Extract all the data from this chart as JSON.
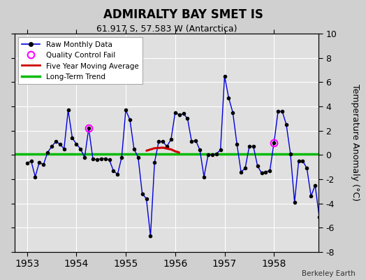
{
  "title": "ADMIRALTY BAY SMET IS",
  "subtitle": "61.917 S, 57.583 W (Antarctica)",
  "ylabel": "Temperature Anomaly (°C)",
  "credit": "Berkeley Earth",
  "ylim": [
    -8,
    10
  ],
  "yticks": [
    -8,
    -6,
    -4,
    -2,
    0,
    2,
    4,
    6,
    8,
    10
  ],
  "xlim_start": 1952.75,
  "xlim_end": 1958.9,
  "xticks": [
    1953,
    1954,
    1955,
    1956,
    1957,
    1958
  ],
  "line_color": "#0000dd",
  "marker_color": "#000000",
  "green_trend_color": "#00bb00",
  "red_moving_avg_color": "#cc0000",
  "qc_fail_color": "#ff00ff",
  "plot_bg_color": "#e0e0e0",
  "fig_bg_color": "#d0d0d0",
  "raw_data": [
    -0.7,
    -0.5,
    -1.8,
    -0.6,
    -0.8,
    0.2,
    0.7,
    1.1,
    0.9,
    0.5,
    3.7,
    1.4,
    0.9,
    0.5,
    -0.2,
    2.2,
    -0.3,
    -0.4,
    -0.3,
    -0.3,
    -0.4,
    -1.3,
    -1.6,
    -0.2,
    3.7,
    2.9,
    0.5,
    -0.2,
    -3.2,
    -3.6,
    -6.7,
    -0.6,
    1.1,
    1.1,
    0.7,
    1.3,
    3.5,
    3.3,
    3.4,
    3.0,
    1.1,
    1.2,
    0.4,
    -1.8,
    0.0,
    0.0,
    0.1,
    0.4,
    6.5,
    4.7,
    3.5,
    0.9,
    -1.4,
    -1.1,
    0.7,
    0.7,
    -0.9,
    -1.5,
    -1.4,
    -1.3,
    1.0,
    3.6,
    3.6,
    2.5,
    0.1,
    -3.9,
    -0.5,
    -0.5,
    -1.1,
    -3.4,
    -2.5,
    -5.1
  ],
  "start_year": 1953.0,
  "months_per_year": 12,
  "qc_fail_indices": [
    15,
    60
  ],
  "moving_avg_x": [
    1955.42,
    1955.58,
    1955.75,
    1955.92,
    1956.0,
    1956.08
  ],
  "moving_avg_y": [
    0.35,
    0.55,
    0.6,
    0.45,
    0.3,
    0.2
  ],
  "long_term_trend_y": 0.1
}
